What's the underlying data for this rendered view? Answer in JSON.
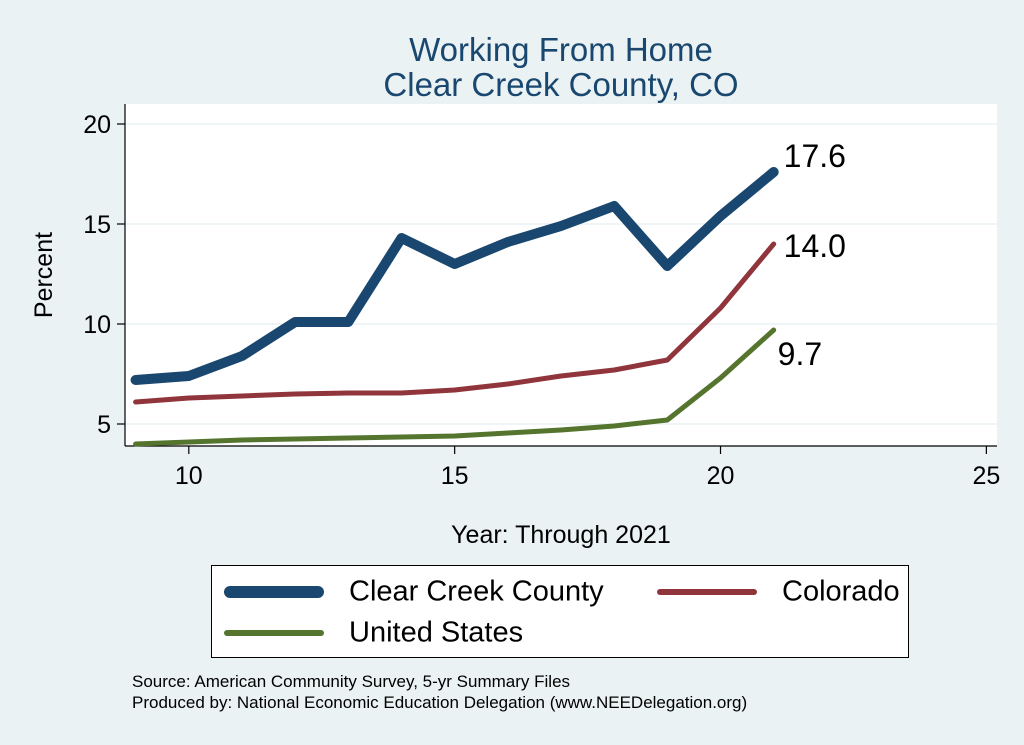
{
  "chart_data": {
    "type": "line",
    "title": [
      "Working From Home",
      "Clear Creek County, CO"
    ],
    "xlabel": "Year: Through 2021",
    "ylabel": "Percent",
    "xlim": [
      8.8,
      25.2
    ],
    "ylim": [
      3.9,
      21.0
    ],
    "xticks": [
      10,
      15,
      20,
      25
    ],
    "yticks": [
      5,
      10,
      15,
      20
    ],
    "grid": true,
    "legend_position": "bottom",
    "x": [
      9,
      10,
      11,
      12,
      13,
      14,
      15,
      16,
      17,
      18,
      19,
      20,
      21
    ],
    "series": [
      {
        "name": "Clear Creek County",
        "color": "#1a476f",
        "values": [
          7.2,
          7.4,
          8.4,
          10.1,
          10.1,
          14.3,
          13.0,
          14.1,
          14.9,
          15.9,
          12.9,
          15.4,
          17.6
        ],
        "end_label": "17.6"
      },
      {
        "name": "Colorado",
        "color": "#90353b",
        "values": [
          6.1,
          6.3,
          6.4,
          6.5,
          6.55,
          6.55,
          6.7,
          7.0,
          7.4,
          7.7,
          8.2,
          10.8,
          14.0
        ],
        "end_label": "14.0"
      },
      {
        "name": "United States",
        "color": "#55752f",
        "values": [
          4.0,
          4.1,
          4.2,
          4.25,
          4.3,
          4.35,
          4.4,
          4.55,
          4.7,
          4.9,
          5.2,
          7.3,
          9.7
        ],
        "end_label": "9.7"
      }
    ]
  },
  "source": {
    "line1": "Source: American Community Survey, 5-yr Summary Files",
    "line2": "Produced by: National Economic Education Delegation (www.NEEDelegation.org)"
  }
}
